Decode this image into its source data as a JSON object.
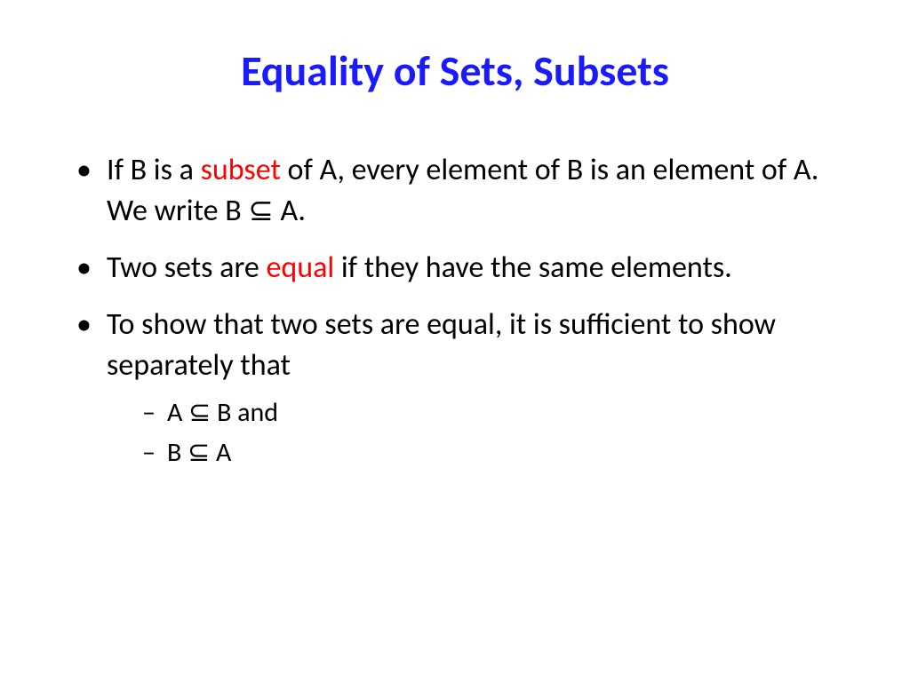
{
  "colors": {
    "title": "#1a1aff",
    "body": "#000000",
    "highlight": "#ff0000",
    "background": "#ffffff"
  },
  "title": "Equality of Sets, Subsets",
  "bullets": [
    {
      "parts": [
        {
          "t": "If B is a "
        },
        {
          "t": "subset",
          "hl": true
        },
        {
          "t": " of A, every element of B is an element of A. We write  B "
        },
        {
          "t": "⊆",
          "sym": true
        },
        {
          "t": " A."
        }
      ]
    },
    {
      "parts": [
        {
          "t": "Two sets are "
        },
        {
          "t": "equal",
          "hl": true
        },
        {
          "t": " if they have the same elements."
        }
      ]
    },
    {
      "parts": [
        {
          "t": "To show that two sets are equal, it is sufficient to show separately that"
        }
      ],
      "sub": [
        {
          "parts": [
            {
              "t": "A "
            },
            {
              "t": "⊆",
              "sym": true
            },
            {
              "t": " B and"
            }
          ]
        },
        {
          "parts": [
            {
              "t": "B "
            },
            {
              "t": "⊆",
              "sym": true
            },
            {
              "t": " A"
            }
          ]
        }
      ]
    }
  ]
}
